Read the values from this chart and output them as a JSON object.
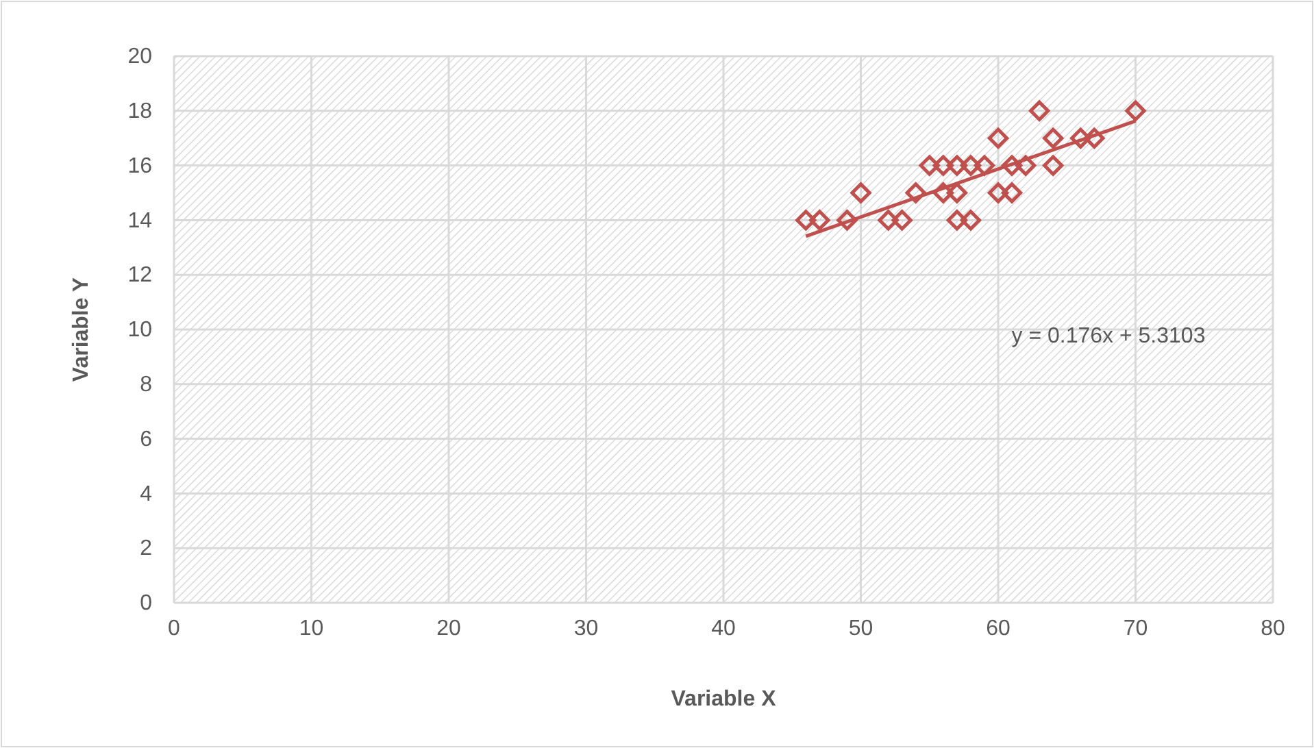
{
  "chart_data": {
    "type": "scatter",
    "xlabel": "Variable X",
    "ylabel": "Variable Y",
    "xlim": [
      0,
      80
    ],
    "xticks": [
      0,
      10,
      20,
      30,
      40,
      50,
      60,
      70,
      80
    ],
    "ylim": [
      0,
      20
    ],
    "yticks": [
      0,
      2,
      4,
      6,
      8,
      10,
      12,
      14,
      16,
      18,
      20
    ],
    "grid": true,
    "marker": "diamond",
    "series": [
      {
        "color": "#c0504d",
        "x": [
          46,
          47,
          49,
          52,
          53,
          57,
          58,
          50,
          54,
          56,
          57,
          60,
          61,
          55,
          56,
          57,
          58,
          59,
          61,
          62,
          64,
          60,
          64,
          66,
          67,
          63,
          70
        ],
        "values": [
          14,
          14,
          14,
          14,
          14,
          14,
          14,
          15,
          15,
          15,
          15,
          15,
          15,
          16,
          16,
          16,
          16,
          16,
          16,
          16,
          16,
          17,
          17,
          17,
          17,
          18,
          18
        ]
      },
      {
        "type": "line",
        "color": "#c0504d",
        "marker": "none",
        "x": [
          46,
          70
        ],
        "values": [
          13.41,
          17.63
        ]
      }
    ],
    "annotations": [
      "y = 0.176x + 5.3103"
    ]
  }
}
